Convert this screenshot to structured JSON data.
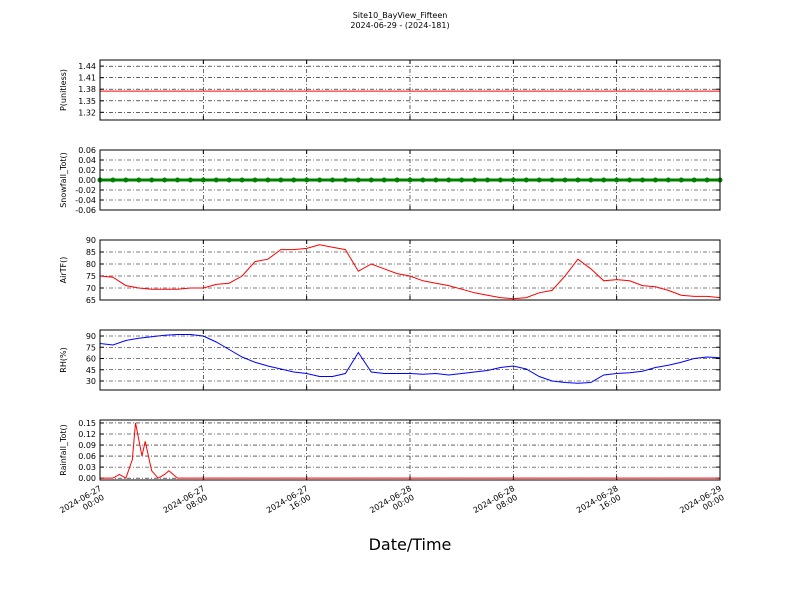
{
  "title": "Site10_BayView_Fifteen",
  "subtitle": "2024-06-29 - (2024-181)",
  "xlabel": "Date/Time",
  "xlim": [
    "2024-06-27 00:00",
    "2024-06-29 00:00"
  ],
  "xticks": [
    "2024-06-27 00:00",
    "2024-06-27 08:00",
    "2024-06-27 16:00",
    "2024-06-28 00:00",
    "2024-06-28 08:00",
    "2024-06-28 16:00",
    "2024-06-29 00:00"
  ],
  "x": [
    "2024-06-27 00:00",
    "2024-06-27 01:00",
    "2024-06-27 02:00",
    "2024-06-27 03:00",
    "2024-06-27 04:00",
    "2024-06-27 05:00",
    "2024-06-27 06:00",
    "2024-06-27 07:00",
    "2024-06-27 08:00",
    "2024-06-27 09:00",
    "2024-06-27 10:00",
    "2024-06-27 11:00",
    "2024-06-27 12:00",
    "2024-06-27 13:00",
    "2024-06-27 14:00",
    "2024-06-27 15:00",
    "2024-06-27 16:00",
    "2024-06-27 17:00",
    "2024-06-27 18:00",
    "2024-06-27 19:00",
    "2024-06-27 20:00",
    "2024-06-27 21:00",
    "2024-06-27 22:00",
    "2024-06-27 23:00",
    "2024-06-28 00:00",
    "2024-06-28 01:00",
    "2024-06-28 02:00",
    "2024-06-28 03:00",
    "2024-06-28 04:00",
    "2024-06-28 05:00",
    "2024-06-28 06:00",
    "2024-06-28 07:00",
    "2024-06-28 08:00",
    "2024-06-28 09:00",
    "2024-06-28 10:00",
    "2024-06-28 11:00",
    "2024-06-28 12:00",
    "2024-06-28 13:00",
    "2024-06-28 14:00",
    "2024-06-28 15:00",
    "2024-06-28 16:00",
    "2024-06-28 17:00",
    "2024-06-28 18:00",
    "2024-06-28 19:00",
    "2024-06-28 20:00",
    "2024-06-28 21:00",
    "2024-06-28 22:00",
    "2024-06-28 23:00",
    "2024-06-29 00:00"
  ],
  "chart_data": [
    {
      "type": "line",
      "ylabel": "P(unitless)",
      "color": "#ff0000",
      "grid": true,
      "ylim": [
        1.3,
        1.456
      ],
      "yticks": [
        1.32,
        1.35,
        1.38,
        1.41,
        1.44
      ],
      "values": [
        1.375,
        1.375,
        1.375,
        1.375,
        1.375,
        1.375,
        1.375,
        1.375,
        1.375,
        1.375,
        1.375,
        1.375,
        1.375,
        1.375,
        1.375,
        1.375,
        1.375,
        1.375,
        1.375,
        1.375,
        1.375,
        1.375,
        1.375,
        1.375,
        1.375,
        1.375,
        1.375,
        1.375,
        1.375,
        1.375,
        1.375,
        1.375,
        1.375,
        1.375,
        1.375,
        1.375,
        1.375,
        1.375,
        1.375,
        1.375,
        1.375,
        1.375,
        1.375,
        1.375,
        1.375,
        1.375,
        1.375,
        1.375,
        1.375
      ]
    },
    {
      "type": "line",
      "ylabel": "Snowfall_Tot()",
      "color": "#008000",
      "grid": true,
      "marker": true,
      "ylim": [
        -0.06,
        0.06
      ],
      "yticks": [
        -0.06,
        -0.04,
        -0.02,
        {
          "value": 0,
          "label": "0.00"
        },
        0.02,
        0.04,
        0.06
      ],
      "values": [
        0,
        0,
        0,
        0,
        0,
        0,
        0,
        0,
        0,
        0,
        0,
        0,
        0,
        0,
        0,
        0,
        0,
        0,
        0,
        0,
        0,
        0,
        0,
        0,
        0,
        0,
        0,
        0,
        0,
        0,
        0,
        0,
        0,
        0,
        0,
        0,
        0,
        0,
        0,
        0,
        0,
        0,
        0,
        0,
        0,
        0,
        0,
        0,
        0
      ]
    },
    {
      "type": "line",
      "ylabel": "AirTF()",
      "color": "#ff0000",
      "grid": true,
      "ylim": [
        65,
        90
      ],
      "yticks": [
        65,
        70,
        75,
        80,
        85,
        90
      ],
      "values": [
        75,
        74.5,
        71,
        70,
        69.5,
        69.5,
        69.5,
        70,
        70,
        71.5,
        72,
        75,
        81,
        82,
        86,
        86,
        86.5,
        88,
        87,
        86,
        77,
        80,
        78,
        76,
        75,
        73,
        72,
        71,
        69.5,
        68,
        67,
        66,
        65.5,
        66,
        68,
        69,
        75,
        82,
        78,
        73,
        73.5,
        73,
        71,
        70.5,
        69,
        67,
        66.5,
        66.5,
        66
      ]
    },
    {
      "type": "line",
      "ylabel": "RH(%)",
      "color": "#0000ff",
      "grid": true,
      "ylim": [
        18,
        98
      ],
      "yticks": [
        30,
        45,
        60,
        75,
        90
      ],
      "values": [
        80,
        78,
        84,
        87,
        89,
        91,
        92,
        92,
        90,
        82,
        72,
        62,
        55,
        50,
        46,
        42,
        40,
        36,
        36,
        40,
        68,
        42,
        40,
        40,
        40,
        39,
        40,
        38,
        40,
        42,
        44,
        48,
        50,
        46,
        36,
        30,
        28,
        27,
        28,
        38,
        40,
        41,
        43,
        48,
        51,
        55,
        60,
        62,
        61
      ]
    },
    {
      "type": "line",
      "ylabel": "Rainfall_Tot()",
      "color": "#ff0000",
      "grid": true,
      "ylim": [
        -0.005,
        0.158
      ],
      "yticks": [
        {
          "value": 0,
          "label": "0.00"
        },
        0.03,
        0.06,
        0.09,
        0.12,
        0.15
      ],
      "x": [
        "2024-06-27 00:00",
        "2024-06-27 01:00",
        "2024-06-27 01:30",
        "2024-06-27 02:00",
        "2024-06-27 02:30",
        "2024-06-27 02:45",
        "2024-06-27 03:15",
        "2024-06-27 03:30",
        "2024-06-27 04:00",
        "2024-06-27 04:30",
        "2024-06-27 05:00",
        "2024-06-27 05:20",
        "2024-06-27 06:00",
        "2024-06-29 00:00"
      ],
      "values": [
        0,
        0,
        0.01,
        0,
        0.05,
        0.15,
        0.06,
        0.1,
        0.02,
        0,
        0.01,
        0.02,
        0,
        0
      ]
    }
  ]
}
